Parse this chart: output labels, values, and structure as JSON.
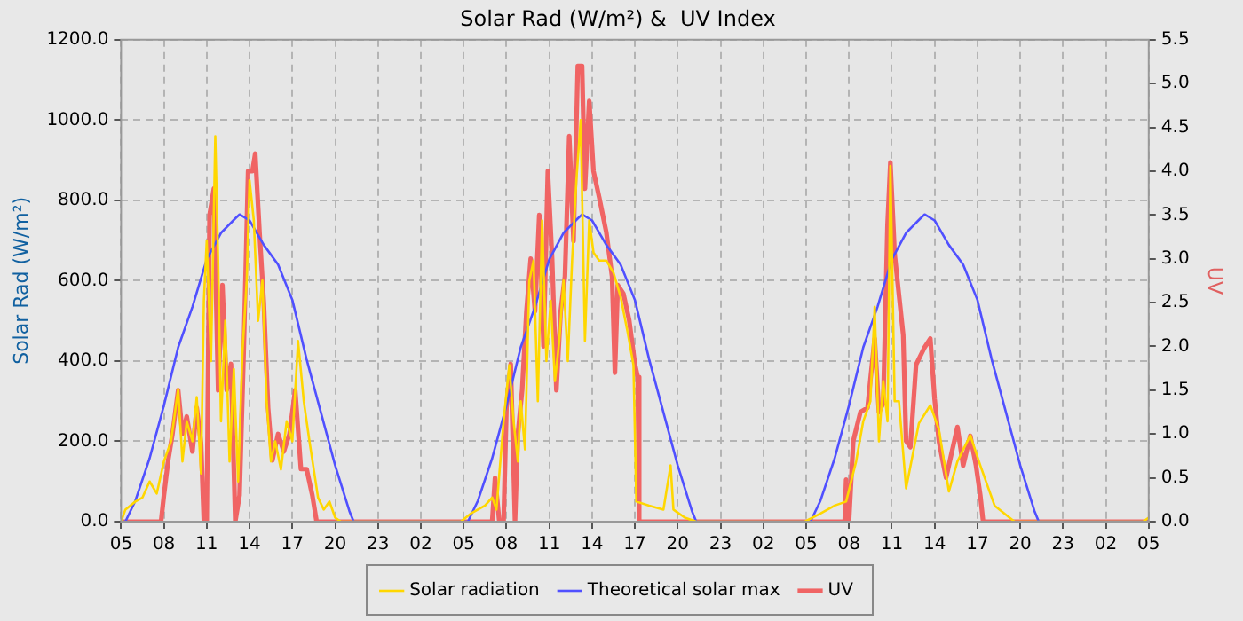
{
  "chart_data": {
    "type": "line",
    "title": "Solar Rad (W/m²) &  UV Index",
    "ylabel": "Solar Rad (W/m²)",
    "y2label": "UV",
    "xlim": [
      "--01-01T05:00",
      "--01-04T05:00"
    ],
    "xticks": [
      {
        "value": "--01-01T05:00",
        "label": "05"
      },
      {
        "value": "--01-01T08:00",
        "label": "08"
      },
      {
        "value": "--01-01T11:00",
        "label": "11"
      },
      {
        "value": "--01-01T14:00",
        "label": "14"
      },
      {
        "value": "--01-01T17:00",
        "label": "17"
      },
      {
        "value": "--01-01T20:00",
        "label": "20"
      },
      {
        "value": "--01-01T23:00",
        "label": "23"
      },
      {
        "value": "--01-02T02:00",
        "label": "02"
      },
      {
        "value": "--01-02T05:00",
        "label": "05"
      },
      {
        "value": "--01-02T08:00",
        "label": "08"
      },
      {
        "value": "--01-02T11:00",
        "label": "11"
      },
      {
        "value": "--01-02T14:00",
        "label": "14"
      },
      {
        "value": "--01-02T17:00",
        "label": "17"
      },
      {
        "value": "--01-02T20:00",
        "label": "20"
      },
      {
        "value": "--01-02T23:00",
        "label": "23"
      },
      {
        "value": "--01-03T02:00",
        "label": "02"
      },
      {
        "value": "--01-03T05:00",
        "label": "05"
      },
      {
        "value": "--01-03T08:00",
        "label": "08"
      },
      {
        "value": "--01-03T11:00",
        "label": "11"
      },
      {
        "value": "--01-03T14:00",
        "label": "14"
      },
      {
        "value": "--01-03T17:00",
        "label": "17"
      },
      {
        "value": "--01-03T20:00",
        "label": "20"
      },
      {
        "value": "--01-03T23:00",
        "label": "23"
      },
      {
        "value": "--01-04T02:00",
        "label": "02"
      },
      {
        "value": "--01-04T05:00",
        "label": "05"
      }
    ],
    "ylim": [
      0,
      1200
    ],
    "yticks": [
      {
        "value": 0,
        "label": "0.0"
      },
      {
        "value": 200,
        "label": "200.0"
      },
      {
        "value": 400,
        "label": "400.0"
      },
      {
        "value": 600,
        "label": "600.0"
      },
      {
        "value": 800,
        "label": "800.0"
      },
      {
        "value": 1000,
        "label": "1000.0"
      },
      {
        "value": 1200,
        "label": "1200.0"
      }
    ],
    "y2lim": [
      0,
      5.5
    ],
    "y2ticks": [
      {
        "value": 0,
        "label": "0.0"
      },
      0.5,
      {
        "value": 1,
        "label": "1.0"
      },
      1.5,
      {
        "value": 2,
        "label": "2.0"
      },
      2.5,
      {
        "value": 3,
        "label": "3.0"
      },
      3.5,
      {
        "value": 4,
        "label": "4.0"
      },
      4.5,
      {
        "value": 5,
        "label": "5.0"
      },
      5.5
    ],
    "grid": true,
    "legend": "bottom",
    "marker": "none",
    "line_style": "solid",
    "series": [
      {
        "name": "Solar radiation",
        "color": "#ffd700",
        "x": [
          "--01-01T05:00",
          "--01-01T05:18",
          "--01-01T06:00",
          "--01-01T06:30",
          "--01-01T07:00",
          "--01-01T07:30",
          "--01-01T08:00",
          "--01-01T08:30",
          "--01-01T09:00",
          "--01-01T09:18",
          "--01-01T09:36",
          "--01-01T10:00",
          "--01-01T10:18",
          "--01-01T10:36",
          "--01-01T10:48",
          "--01-01T11:00",
          "--01-01T11:18",
          "--01-01T11:36",
          "--01-01T11:48",
          "--01-01T12:00",
          "--01-01T12:18",
          "--01-01T12:36",
          "--01-01T12:54",
          "--01-01T13:12",
          "--01-01T13:30",
          "--01-01T13:48",
          "--01-01T14:00",
          "--01-01T14:18",
          "--01-01T14:36",
          "--01-01T14:54",
          "--01-01T15:12",
          "--01-01T15:30",
          "--01-01T15:48",
          "--01-01T16:12",
          "--01-01T16:36",
          "--01-01T17:00",
          "--01-01T17:24",
          "--01-01T17:48",
          "--01-01T18:12",
          "--01-01T18:30",
          "--01-01T18:48",
          "--01-01T19:12",
          "--01-01T19:36",
          "--01-01T20:00",
          "--01-01T20:24",
          "--01-02T04:48",
          "--01-02T05:30",
          "--01-02T06:30",
          "--01-02T07:00",
          "--01-02T07:18",
          "--01-02T07:48",
          "--01-02T08:12",
          "--01-02T08:30",
          "--01-02T08:48",
          "--01-02T09:00",
          "--01-02T09:18",
          "--01-02T09:36",
          "--01-02T09:54",
          "--01-02T10:12",
          "--01-02T10:30",
          "--01-02T10:48",
          "--01-02T11:06",
          "--01-02T11:24",
          "--01-02T11:42",
          "--01-02T12:00",
          "--01-02T12:18",
          "--01-02T12:36",
          "--01-02T12:54",
          "--01-02T13:12",
          "--01-02T13:30",
          "--01-02T13:48",
          "--01-02T14:06",
          "--01-02T14:30",
          "--01-02T15:00",
          "--01-02T15:30",
          "--01-02T16:00",
          "--01-02T16:30",
          "--01-02T16:54",
          "--01-02T17:06",
          "--01-02T18:00",
          "--01-02T19:00",
          "--01-02T19:30",
          "--01-02T19:42",
          "--01-02T20:30",
          "--01-02T21:18",
          "--01-03T04:54",
          "--01-03T06:00",
          "--01-03T07:00",
          "--01-03T07:48",
          "--01-03T08:30",
          "--01-03T09:00",
          "--01-03T09:30",
          "--01-03T09:48",
          "--01-03T10:06",
          "--01-03T10:24",
          "--01-03T10:42",
          "--01-03T10:54",
          "--01-03T11:12",
          "--01-03T11:30",
          "--01-03T12:00",
          "--01-03T12:54",
          "--01-03T13:42",
          "--01-03T14:18",
          "--01-03T15:00",
          "--01-03T15:36",
          "--01-03T16:30",
          "--01-03T17:12",
          "--01-03T18:12",
          "--01-03T19:36",
          "--01-04T04:36",
          "--01-04T05:00"
        ],
        "values": [
          0,
          30,
          50,
          60,
          100,
          70,
          150,
          200,
          330,
          150,
          250,
          200,
          310,
          120,
          550,
          700,
          400,
          960,
          650,
          250,
          500,
          150,
          380,
          100,
          420,
          600,
          850,
          750,
          500,
          600,
          300,
          150,
          200,
          130,
          250,
          200,
          450,
          300,
          200,
          130,
          60,
          30,
          50,
          10,
          0,
          0,
          20,
          40,
          60,
          30,
          250,
          390,
          250,
          150,
          300,
          180,
          600,
          650,
          300,
          750,
          400,
          550,
          350,
          450,
          600,
          400,
          650,
          850,
          1000,
          450,
          750,
          670,
          650,
          650,
          620,
          560,
          470,
          390,
          50,
          40,
          30,
          140,
          30,
          10,
          0,
          0,
          20,
          40,
          50,
          150,
          250,
          300,
          535,
          200,
          350,
          250,
          886,
          300,
          300,
          83,
          245,
          290,
          230,
          75,
          150,
          215,
          140,
          40,
          0,
          0,
          10
        ]
      },
      {
        "name": "Theoretical solar max",
        "color": "#5050ff",
        "x": [
          "--01-01T05:00",
          "--01-01T05:18",
          "--01-01T06:00",
          "--01-01T07:00",
          "--01-01T08:00",
          "--01-01T09:00",
          "--01-01T10:00",
          "--01-01T11:00",
          "--01-01T12:00",
          "--01-01T13:00",
          "--01-01T13:18",
          "--01-01T14:00",
          "--01-01T15:00",
          "--01-01T16:00",
          "--01-01T17:00",
          "--01-01T18:00",
          "--01-01T19:00",
          "--01-01T20:00",
          "--01-01T21:00",
          "--01-01T21:18",
          "--01-02T05:18",
          "--01-02T06:00",
          "--01-02T07:00",
          "--01-02T08:00",
          "--01-02T09:00",
          "--01-02T10:00",
          "--01-02T11:00",
          "--01-02T12:00",
          "--01-02T13:00",
          "--01-02T13:18",
          "--01-02T14:00",
          "--01-02T15:00",
          "--01-02T16:00",
          "--01-02T17:00",
          "--01-02T18:00",
          "--01-02T19:00",
          "--01-02T20:00",
          "--01-02T21:00",
          "--01-02T21:18",
          "--01-03T05:18",
          "--01-03T06:00",
          "--01-03T07:00",
          "--01-03T08:00",
          "--01-03T09:00",
          "--01-03T10:00",
          "--01-03T11:00",
          "--01-03T12:00",
          "--01-03T13:00",
          "--01-03T13:18",
          "--01-03T14:00",
          "--01-03T15:00",
          "--01-03T16:00",
          "--01-03T17:00",
          "--01-03T18:00",
          "--01-03T19:00",
          "--01-03T20:00",
          "--01-03T21:00",
          "--01-03T21:18",
          "--01-04T05:00"
        ],
        "values": [
          0,
          0,
          52,
          158,
          289,
          434,
          535,
          653,
          719,
          755,
          765,
          750,
          689,
          640,
          552,
          404,
          272,
          140,
          26,
          0,
          0,
          52,
          158,
          289,
          434,
          535,
          653,
          719,
          755,
          765,
          750,
          689,
          640,
          552,
          404,
          272,
          140,
          26,
          0,
          0,
          52,
          158,
          289,
          434,
          535,
          653,
          719,
          755,
          765,
          750,
          689,
          640,
          552,
          404,
          272,
          140,
          26,
          0,
          0
        ]
      },
      {
        "name": "UV",
        "color": "#f06464",
        "axis": "y2",
        "x": [
          "--01-01T05:00",
          "--01-01T07:48",
          "--01-01T08:00",
          "--01-01T08:18",
          "--01-01T08:36",
          "--01-01T09:00",
          "--01-01T09:18",
          "--01-01T09:36",
          "--01-01T10:00",
          "--01-01T10:18",
          "--01-01T10:36",
          "--01-01T10:48",
          "--01-01T11:00",
          "--01-01T11:12",
          "--01-01T11:30",
          "--01-01T11:48",
          "--01-01T12:06",
          "--01-01T12:24",
          "--01-01T12:42",
          "--01-01T13:00",
          "--01-01T13:18",
          "--01-01T13:36",
          "--01-01T13:54",
          "--01-01T14:12",
          "--01-01T14:24",
          "--01-01T14:42",
          "--01-01T15:00",
          "--01-01T15:18",
          "--01-01T15:36",
          "--01-01T16:00",
          "--01-01T16:24",
          "--01-01T16:48",
          "--01-01T17:12",
          "--01-01T17:36",
          "--01-01T18:00",
          "--01-01T18:24",
          "--01-01T18:42",
          "--01-02T07:00",
          "--01-02T07:12",
          "--01-02T07:30",
          "--01-02T07:48",
          "--01-02T08:00",
          "--01-02T08:18",
          "--01-02T08:36",
          "--01-02T08:48",
          "--01-02T09:06",
          "--01-02T09:24",
          "--01-02T09:42",
          "--01-02T10:00",
          "--01-02T10:18",
          "--01-02T10:36",
          "--01-02T10:54",
          "--01-02T11:12",
          "--01-02T11:30",
          "--01-02T11:48",
          "--01-02T12:06",
          "--01-02T12:24",
          "--01-02T12:42",
          "--01-02T13:00",
          "--01-02T13:18",
          "--01-02T13:30",
          "--01-02T13:48",
          "--01-02T14:06",
          "--01-02T14:30",
          "--01-02T15:00",
          "--01-02T15:24",
          "--01-02T15:36",
          "--01-02T15:48",
          "--01-02T16:12",
          "--01-02T16:36",
          "--01-02T17:00",
          "--01-02T17:12",
          "--01-02T17:18",
          "--01-03T07:42",
          "--01-03T07:48",
          "--01-03T08:00",
          "--01-03T08:06",
          "--01-03T08:18",
          "--01-03T08:48",
          "--01-03T09:18",
          "--01-03T09:48",
          "--01-03T10:06",
          "--01-03T10:24",
          "--01-03T10:42",
          "--01-03T10:54",
          "--01-03T11:12",
          "--01-03T11:30",
          "--01-03T11:48",
          "--01-03T12:00",
          "--01-03T12:18",
          "--01-03T12:42",
          "--01-03T13:18",
          "--01-03T13:42",
          "--01-03T14:00",
          "--01-03T14:18",
          "--01-03T14:48",
          "--01-03T15:36",
          "--01-03T16:00",
          "--01-03T16:30",
          "--01-03T16:54",
          "--01-03T17:12",
          "--01-03T17:24",
          "--01-04T05:00"
        ],
        "values": [
          0,
          0,
          0.3,
          0.7,
          1,
          1.5,
          1,
          1.2,
          0.8,
          1.3,
          0.9,
          0,
          0,
          3.5,
          3.8,
          1.5,
          2.7,
          1.5,
          1.8,
          0,
          0.3,
          2,
          4,
          4,
          4.2,
          3.3,
          2.5,
          1.3,
          0.7,
          1,
          0.8,
          1,
          1.5,
          0.6,
          0.6,
          0.3,
          0,
          0,
          0.5,
          0,
          0,
          1.3,
          1.8,
          0,
          1,
          1.5,
          2.4,
          3,
          2.4,
          3.5,
          2,
          4,
          3,
          1.5,
          2.4,
          2.8,
          4.4,
          3.2,
          5.2,
          5.2,
          3.8,
          4.8,
          4,
          3.7,
          3.3,
          2.8,
          1.7,
          2.7,
          2.6,
          2.3,
          1.8,
          1.65,
          0,
          0,
          0.48,
          0,
          0,
          0.92,
          1.25,
          1.3,
          2.09,
          1.25,
          1.35,
          3.39,
          4.1,
          3.05,
          2.59,
          2.13,
          0.92,
          0.85,
          1.79,
          1.99,
          2.09,
          1.4,
          0.92,
          0.5,
          1.08,
          0.64,
          0.98,
          0.64,
          0.3,
          0,
          0
        ]
      }
    ]
  }
}
